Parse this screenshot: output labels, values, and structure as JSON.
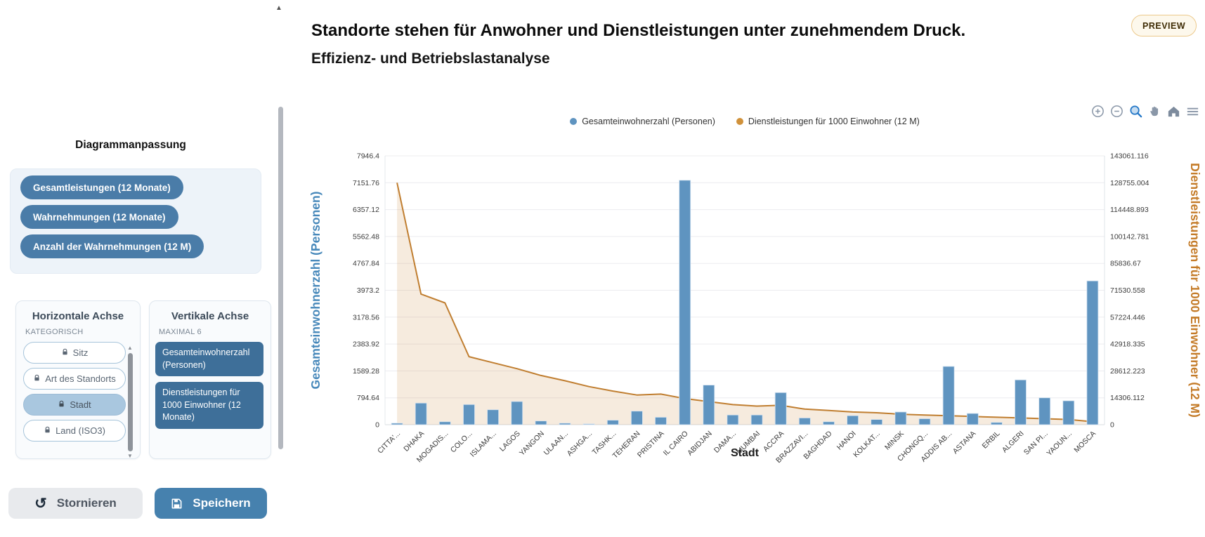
{
  "header": {
    "title": "Standorte stehen für Anwohner und Dienstleistungen unter zunehmendem Druck.",
    "subtitle": "Effizienz- und Betriebslastanalyse",
    "preview_badge": "PREVIEW"
  },
  "sidebar": {
    "title": "Diagrammanpassung",
    "metric_pills": [
      {
        "label": "Gesamtleistungen (12 Monate)"
      },
      {
        "label": "Wahrnehmungen (12 Monate)"
      },
      {
        "label": "Anzahl der Wahrnehmungen (12 M)"
      }
    ],
    "horizontal_axis": {
      "title": "Horizontale Achse",
      "subtitle": "KATEGORISCH",
      "items": [
        {
          "label": "Sitz",
          "locked": true,
          "selected": false
        },
        {
          "label": "Art des Standorts",
          "locked": true,
          "selected": false
        },
        {
          "label": "Stadt",
          "locked": true,
          "selected": true
        },
        {
          "label": "Land (ISO3)",
          "locked": true,
          "selected": false
        }
      ]
    },
    "vertical_axis": {
      "title": "Vertikale Achse",
      "subtitle": "MAXIMAL 6",
      "items": [
        {
          "label": "Gesamteinwohnerzahl (Personen)",
          "selected": true
        },
        {
          "label": "Dienstleistungen für 1000 Einwohner (12 Monate)",
          "selected": true
        }
      ]
    },
    "cancel_label": "Stornieren",
    "save_label": "Speichern"
  },
  "toolbar": {
    "icons": [
      "zoom-in",
      "zoom-out",
      "box-zoom",
      "pan",
      "home",
      "menu"
    ],
    "active_icon": "box-zoom"
  },
  "chart_data": {
    "type": "combo-bar-line-dual-axis",
    "categories": [
      "CITTA'...",
      "DHAKA",
      "MOGADIS...",
      "COLO...",
      "ISLAMA...",
      "LAGOS",
      "YANGON",
      "ULAAN...",
      "ASHGA...",
      "TASHK...",
      "TEHERAN",
      "PRISTINA",
      "IL CAIRO",
      "ABIDJAN",
      "DAMA...",
      "MUMBAI",
      "ACCRA",
      "BRAZZAVI...",
      "BAGHDAD",
      "HANOI",
      "KOLKAT...",
      "MINSK",
      "CHONGQ...",
      "ADDIS AB...",
      "ASTANA",
      "ERBIL",
      "ALGERI",
      "SAN PI...",
      "YAOUN...",
      "MOSCA"
    ],
    "series": [
      {
        "name": "Gesamteinwohnerzahl (Personen)",
        "type": "bar",
        "axis": "left",
        "color": "#5f94c0",
        "values": [
          44,
          640,
          88,
          596,
          441,
          684,
          110,
          44,
          22,
          132,
          400,
          220,
          7224,
          1170,
          287,
          287,
          949,
          199,
          88,
          265,
          154,
          375,
          177,
          1722,
          331,
          66,
          1324,
          795,
          706,
          4250
        ]
      },
      {
        "name": "Dienstleistungen für 1000 Einwohner (12 M)",
        "type": "area-line",
        "axis": "right",
        "color": "#c07e30",
        "fill_color": "rgba(200,130,50,0.16)",
        "values": [
          128755,
          69500,
          64800,
          36200,
          33000,
          29800,
          26200,
          23400,
          20300,
          17900,
          15800,
          16300,
          13900,
          12300,
          10700,
          9900,
          10300,
          8300,
          7550,
          6760,
          6360,
          5560,
          5170,
          4770,
          4370,
          3970,
          3580,
          3180,
          2780,
          1600
        ]
      }
    ],
    "left_axis": {
      "title": "Gesamteinwohnerzahl (Personen)",
      "color": "#4788ba",
      "max": 7946.4,
      "tick_values": [
        0,
        794.64,
        1589.28,
        2383.92,
        3178.56,
        3973.2,
        4767.84,
        5562.48,
        6357.12,
        7151.76,
        7946.4
      ],
      "tick_labels": [
        "0",
        "794.64",
        "1589.28",
        "2383.92",
        "3178.56",
        "3973.2",
        "4767.84",
        "5562.48",
        "6357.12",
        "7151.76",
        "7946.4"
      ]
    },
    "right_axis": {
      "title": "Dienstleistungen für 1000 Einwohner (12 M)",
      "color": "#c47b28",
      "max": 143061.116,
      "tick_values": [
        0,
        14306.112,
        28612.223,
        42918.335,
        57224.446,
        71530.558,
        85836.67,
        100142.781,
        114448.893,
        128755.004,
        143061.116
      ],
      "tick_labels": [
        "0",
        "14306.112",
        "28612.223",
        "42918.335",
        "57224.446",
        "71530.558",
        "85836.67",
        "100142.781",
        "114448.893",
        "128755.004",
        "143061.116"
      ]
    },
    "x_axis": {
      "title": "Stadt"
    },
    "legend": [
      "Gesamteinwohnerzahl (Personen)",
      "Dienstleistungen für 1000 Einwohner (12 M)"
    ],
    "legend_position": "top-center",
    "grid": true
  }
}
